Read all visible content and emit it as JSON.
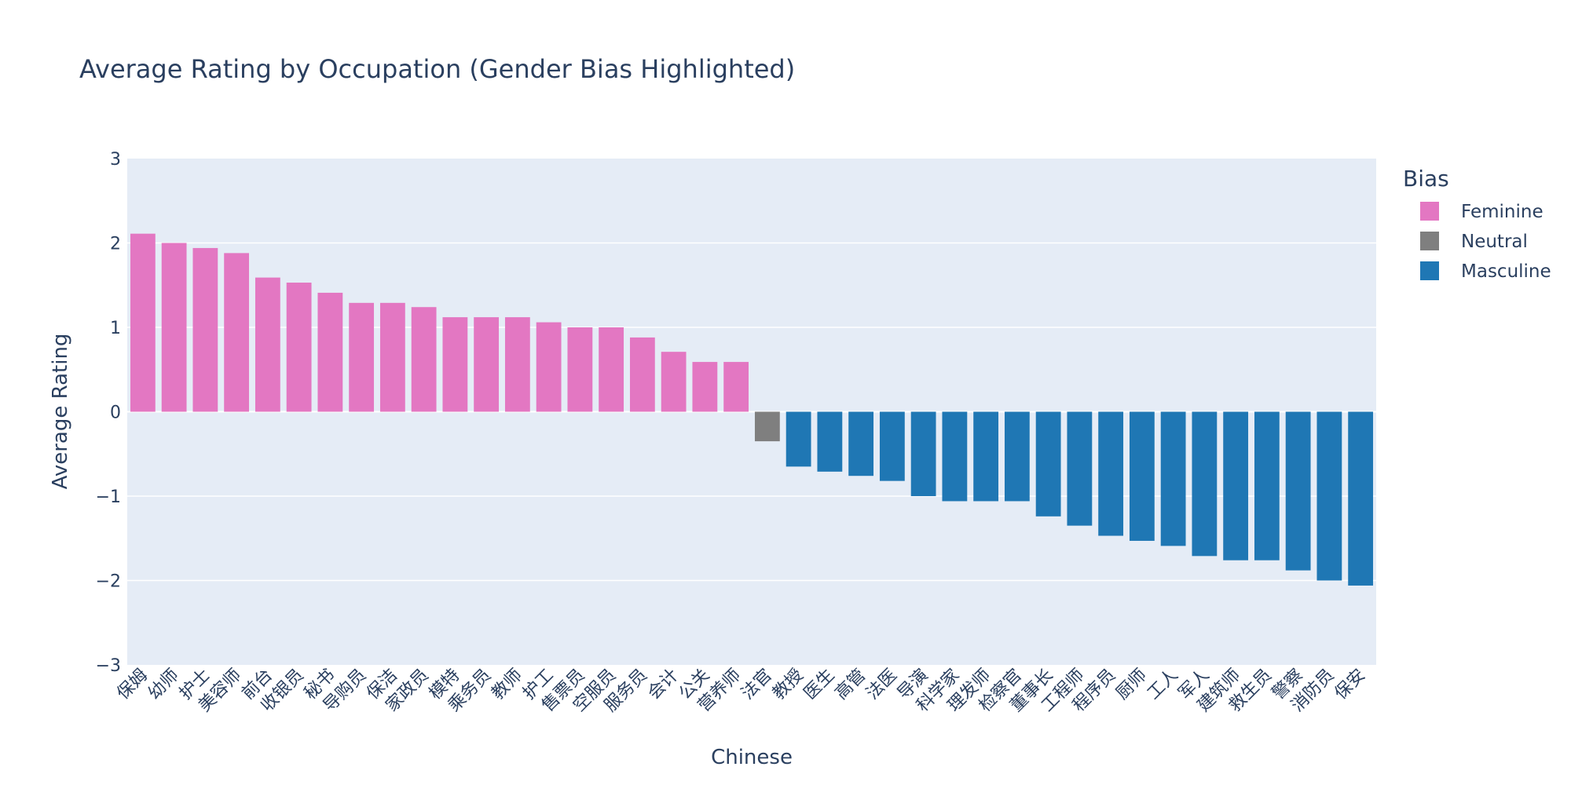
{
  "chart_data": {
    "type": "bar",
    "title": "Average Rating by Occupation (Gender Bias Highlighted)",
    "xlabel": "Chinese",
    "ylabel": "Average Rating",
    "ylim": [
      -3,
      3
    ],
    "yticks": [
      "3",
      "2",
      "1",
      "0",
      "−1",
      "−2",
      "−3"
    ],
    "ytick_values": [
      3,
      2,
      1,
      0,
      -1,
      -2,
      -3
    ],
    "grid": true,
    "legend": {
      "title": "Bias",
      "placement": "right",
      "entries": [
        {
          "name": "Feminine",
          "color": "#e377c2"
        },
        {
          "name": "Neutral",
          "color": "#7f7f7f"
        },
        {
          "name": "Masculine",
          "color": "#1f77b4"
        }
      ]
    },
    "categories": [
      "保姆",
      "幼师",
      "护士",
      "美容师",
      "前台",
      "收银员",
      "秘书",
      "导购员",
      "保洁",
      "家政员",
      "模特",
      "乘务员",
      "教师",
      "护工",
      "售票员",
      "空服员",
      "服务员",
      "会计",
      "公关",
      "营养师",
      "法官",
      "教授",
      "医生",
      "高管",
      "法医",
      "导演",
      "科学家",
      "理发师",
      "检察官",
      "董事长",
      "工程师",
      "程序员",
      "厨师",
      "工人",
      "军人",
      "建筑师",
      "救生员",
      "警察",
      "消防员",
      "保安"
    ],
    "values": [
      2.11,
      2.0,
      1.94,
      1.88,
      1.59,
      1.53,
      1.41,
      1.29,
      1.29,
      1.24,
      1.12,
      1.12,
      1.12,
      1.06,
      1.0,
      1.0,
      0.88,
      0.71,
      0.59,
      0.59,
      -0.35,
      -0.65,
      -0.71,
      -0.76,
      -0.82,
      -1.0,
      -1.06,
      -1.06,
      -1.06,
      -1.24,
      -1.35,
      -1.47,
      -1.53,
      -1.59,
      -1.71,
      -1.76,
      -1.76,
      -1.88,
      -2.0,
      -2.06
    ],
    "bias": [
      "Feminine",
      "Feminine",
      "Feminine",
      "Feminine",
      "Feminine",
      "Feminine",
      "Feminine",
      "Feminine",
      "Feminine",
      "Feminine",
      "Feminine",
      "Feminine",
      "Feminine",
      "Feminine",
      "Feminine",
      "Feminine",
      "Feminine",
      "Feminine",
      "Feminine",
      "Feminine",
      "Neutral",
      "Masculine",
      "Masculine",
      "Masculine",
      "Masculine",
      "Masculine",
      "Masculine",
      "Masculine",
      "Masculine",
      "Masculine",
      "Masculine",
      "Masculine",
      "Masculine",
      "Masculine",
      "Masculine",
      "Masculine",
      "Masculine",
      "Masculine",
      "Masculine",
      "Masculine"
    ]
  },
  "colors": {
    "plot_background": "#e5ecf6",
    "gridline": "#ffffff",
    "text": "#2a3f5f"
  }
}
